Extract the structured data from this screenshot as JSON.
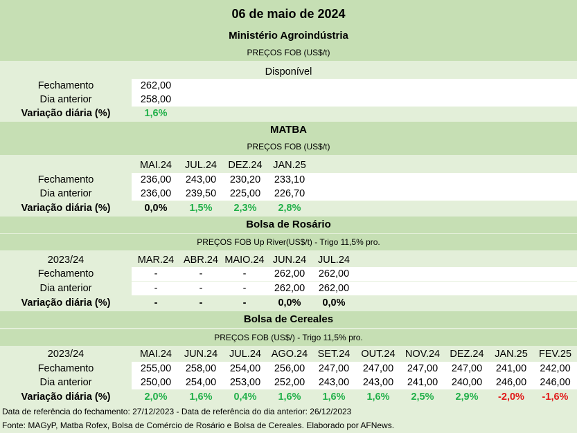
{
  "title": "06 de maio de 2024",
  "sections": {
    "ministerio": {
      "title": "Ministério Agroindústria",
      "subtitle": "PREÇOS FOB (US$/t)",
      "column": "Disponível",
      "rows": {
        "fechamento": {
          "label": "Fechamento",
          "values": [
            "262,00"
          ]
        },
        "anterior": {
          "label": "Dia anterior",
          "values": [
            "258,00"
          ]
        },
        "variacao": {
          "label": "Variação diária (%)",
          "values": [
            "1,6%"
          ]
        }
      }
    },
    "matba": {
      "title": "MATBA",
      "subtitle": "PREÇOS FOB (US$/t)",
      "columns": [
        "MAI.24",
        "JUL.24",
        "DEZ.24",
        "JAN.25"
      ],
      "rows": {
        "fechamento": {
          "label": "Fechamento",
          "values": [
            "236,00",
            "243,00",
            "230,20",
            "233,10"
          ]
        },
        "anterior": {
          "label": "Dia anterior",
          "values": [
            "236,00",
            "239,50",
            "225,00",
            "226,70"
          ]
        },
        "variacao": {
          "label": "Variação diária (%)",
          "values": [
            "0,0%",
            "1,5%",
            "2,3%",
            "2,8%"
          ]
        }
      }
    },
    "rosario": {
      "title": "Bolsa de Rosário",
      "subtitle": "PREÇOS FOB Up River(US$/t) - Trigo 11,5% pro.",
      "season": "2023/24",
      "columns": [
        "MAR.24",
        "ABR.24",
        "MAIO.24",
        "JUN.24",
        "JUL.24"
      ],
      "rows": {
        "fechamento": {
          "label": "Fechamento",
          "values": [
            "-",
            "-",
            "-",
            "262,00",
            "262,00"
          ]
        },
        "anterior": {
          "label": "Dia anterior",
          "values": [
            "-",
            "-",
            "-",
            "262,00",
            "262,00"
          ]
        },
        "variacao": {
          "label": "Variação diária (%)",
          "values": [
            "-",
            "-",
            "-",
            "0,0%",
            "0,0%"
          ]
        }
      }
    },
    "cereales": {
      "title": "Bolsa de Cereales",
      "subtitle": "PREÇOS FOB (US$/) - Trigo 11,5% pro.",
      "season": "2023/24",
      "columns": [
        "MAI.24",
        "JUN.24",
        "JUL.24",
        "AGO.24",
        "SET.24",
        "OUT.24",
        "NOV.24",
        "DEZ.24",
        "JAN.25",
        "FEV.25"
      ],
      "rows": {
        "fechamento": {
          "label": "Fechamento",
          "values": [
            "255,00",
            "258,00",
            "254,00",
            "256,00",
            "247,00",
            "247,00",
            "247,00",
            "247,00",
            "241,00",
            "242,00"
          ]
        },
        "anterior": {
          "label": "Dia anterior",
          "values": [
            "250,00",
            "254,00",
            "253,00",
            "252,00",
            "243,00",
            "243,00",
            "241,00",
            "240,00",
            "246,00",
            "246,00"
          ]
        },
        "variacao": {
          "label": "Variação diária (%)",
          "values": [
            "2,0%",
            "1,6%",
            "0,4%",
            "1,6%",
            "1,6%",
            "1,6%",
            "2,5%",
            "2,9%",
            "-2,0%",
            "-1,6%"
          ]
        }
      }
    }
  },
  "footer": {
    "reference": "Data de referência do fechamento: 27/12/2023 - Data de referência do dia anterior: 26/12/2023",
    "source": "Fonte: MAGyP, Matba Rofex, Bolsa de Comércio de Rosário e Bolsa de Cereales. Elaborado por AFNews."
  },
  "colors": {
    "header_bg": "#c6dfb4",
    "body_bg": "#e3efd9",
    "positive": "#22b04a",
    "negative": "#e11a1a"
  }
}
